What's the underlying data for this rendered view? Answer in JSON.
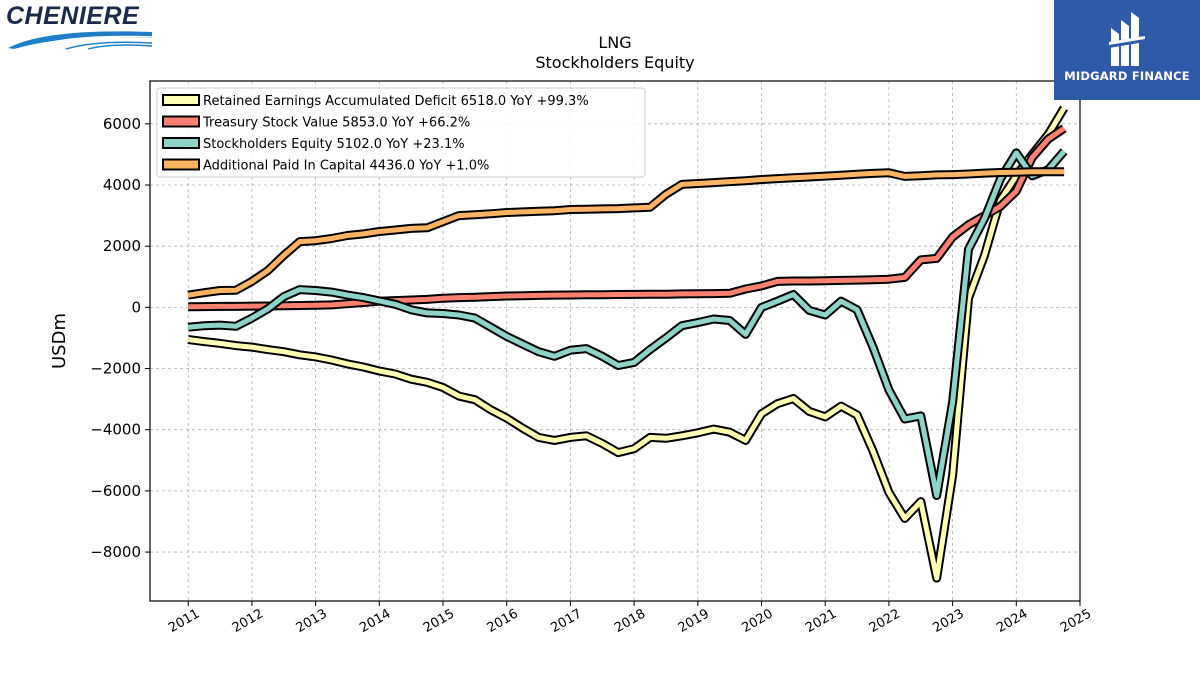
{
  "brands": {
    "left_logo_text": "CHENIERE",
    "right_logo_text": "MIDGARD FINANCE"
  },
  "colors": {
    "retained": "#ffffb3",
    "treasury": "#fb8072",
    "equity": "#8dd3c7",
    "apic": "#fdb462",
    "midgard_bg": "#2f5aa8"
  },
  "chart_data": {
    "type": "line",
    "title": "LNG",
    "subtitle": "Stockholders  Equity",
    "ylabel": "USDm",
    "xlabel": "",
    "xlim": [
      2010.4,
      2025.0
    ],
    "ylim": [
      -9600,
      7400
    ],
    "yticks": [
      -8000,
      -6000,
      -4000,
      -2000,
      0,
      2000,
      4000,
      6000
    ],
    "ytick_labels": [
      "−8000",
      "−6000",
      "−4000",
      "−2000",
      "0",
      "2000",
      "4000",
      "6000"
    ],
    "xticks": [
      2011,
      2012,
      2013,
      2014,
      2015,
      2016,
      2017,
      2018,
      2019,
      2020,
      2021,
      2022,
      2023,
      2024,
      2025
    ],
    "xtick_labels": [
      "2011",
      "2012",
      "2013",
      "2014",
      "2015",
      "2016",
      "2017",
      "2018",
      "2019",
      "2020",
      "2021",
      "2022",
      "2023",
      "2024",
      "2025"
    ],
    "grid": true,
    "legend_position": "top-left",
    "series": [
      {
        "name": "Retained Earnings Accumulated Deficit  6518.0 YoY +99.3%",
        "color": "#ffffb3",
        "points": [
          [
            2011.0,
            -1050
          ],
          [
            2011.25,
            -1120
          ],
          [
            2011.5,
            -1180
          ],
          [
            2011.75,
            -1250
          ],
          [
            2012.0,
            -1300
          ],
          [
            2012.25,
            -1380
          ],
          [
            2012.5,
            -1450
          ],
          [
            2012.75,
            -1550
          ],
          [
            2013.0,
            -1620
          ],
          [
            2013.25,
            -1720
          ],
          [
            2013.5,
            -1850
          ],
          [
            2013.75,
            -1950
          ],
          [
            2014.0,
            -2080
          ],
          [
            2014.25,
            -2180
          ],
          [
            2014.5,
            -2350
          ],
          [
            2014.75,
            -2450
          ],
          [
            2015.0,
            -2620
          ],
          [
            2015.25,
            -2900
          ],
          [
            2015.5,
            -3020
          ],
          [
            2015.75,
            -3350
          ],
          [
            2016.0,
            -3620
          ],
          [
            2016.25,
            -3950
          ],
          [
            2016.5,
            -4250
          ],
          [
            2016.75,
            -4350
          ],
          [
            2017.0,
            -4250
          ],
          [
            2017.25,
            -4200
          ],
          [
            2017.5,
            -4450
          ],
          [
            2017.75,
            -4750
          ],
          [
            2018.0,
            -4620
          ],
          [
            2018.25,
            -4250
          ],
          [
            2018.5,
            -4280
          ],
          [
            2018.75,
            -4200
          ],
          [
            2019.0,
            -4100
          ],
          [
            2019.25,
            -3980
          ],
          [
            2019.5,
            -4080
          ],
          [
            2019.75,
            -4350
          ],
          [
            2020.0,
            -3480
          ],
          [
            2020.25,
            -3150
          ],
          [
            2020.5,
            -2980
          ],
          [
            2020.75,
            -3400
          ],
          [
            2021.0,
            -3580
          ],
          [
            2021.25,
            -3230
          ],
          [
            2021.5,
            -3520
          ],
          [
            2021.75,
            -4700
          ],
          [
            2022.0,
            -6050
          ],
          [
            2022.25,
            -6900
          ],
          [
            2022.5,
            -6350
          ],
          [
            2022.75,
            -8850
          ],
          [
            2023.0,
            -5500
          ],
          [
            2023.25,
            300
          ],
          [
            2023.5,
            1700
          ],
          [
            2023.75,
            3500
          ],
          [
            2024.0,
            4300
          ],
          [
            2024.25,
            5000
          ],
          [
            2024.5,
            5650
          ],
          [
            2024.75,
            6518
          ]
        ]
      },
      {
        "name": "Treasury Stock Value  5853.0 YoY +66.2%",
        "color": "#fb8072",
        "points": [
          [
            2011.0,
            20
          ],
          [
            2011.25,
            25
          ],
          [
            2011.5,
            30
          ],
          [
            2011.75,
            30
          ],
          [
            2012.0,
            40
          ],
          [
            2012.25,
            45
          ],
          [
            2012.5,
            50
          ],
          [
            2012.75,
            60
          ],
          [
            2013.0,
            70
          ],
          [
            2013.25,
            80
          ],
          [
            2013.5,
            120
          ],
          [
            2013.75,
            160
          ],
          [
            2014.0,
            200
          ],
          [
            2014.25,
            220
          ],
          [
            2014.5,
            240
          ],
          [
            2014.75,
            260
          ],
          [
            2015.0,
            300
          ],
          [
            2015.25,
            320
          ],
          [
            2015.5,
            330
          ],
          [
            2015.75,
            350
          ],
          [
            2016.0,
            370
          ],
          [
            2016.25,
            380
          ],
          [
            2016.5,
            390
          ],
          [
            2016.75,
            400
          ],
          [
            2017.0,
            405
          ],
          [
            2017.25,
            410
          ],
          [
            2017.5,
            415
          ],
          [
            2017.75,
            420
          ],
          [
            2018.0,
            425
          ],
          [
            2018.25,
            430
          ],
          [
            2018.5,
            430
          ],
          [
            2018.75,
            440
          ],
          [
            2019.0,
            445
          ],
          [
            2019.25,
            450
          ],
          [
            2019.5,
            460
          ],
          [
            2019.75,
            600
          ],
          [
            2020.0,
            700
          ],
          [
            2020.25,
            850
          ],
          [
            2020.5,
            860
          ],
          [
            2020.75,
            860
          ],
          [
            2021.0,
            870
          ],
          [
            2021.25,
            880
          ],
          [
            2021.5,
            890
          ],
          [
            2021.75,
            900
          ],
          [
            2022.0,
            920
          ],
          [
            2022.25,
            980
          ],
          [
            2022.5,
            1550
          ],
          [
            2022.75,
            1600
          ],
          [
            2023.0,
            2300
          ],
          [
            2023.25,
            2700
          ],
          [
            2023.5,
            3000
          ],
          [
            2023.75,
            3300
          ],
          [
            2024.0,
            3800
          ],
          [
            2024.25,
            4900
          ],
          [
            2024.5,
            5500
          ],
          [
            2024.75,
            5853
          ]
        ]
      },
      {
        "name": "Stockholders Equity  5102.0 YoY +23.1%",
        "color": "#8dd3c7",
        "points": [
          [
            2011.0,
            -650
          ],
          [
            2011.25,
            -600
          ],
          [
            2011.5,
            -580
          ],
          [
            2011.75,
            -620
          ],
          [
            2012.0,
            -350
          ],
          [
            2012.25,
            -50
          ],
          [
            2012.5,
            350
          ],
          [
            2012.75,
            580
          ],
          [
            2013.0,
            550
          ],
          [
            2013.25,
            500
          ],
          [
            2013.5,
            400
          ],
          [
            2013.75,
            320
          ],
          [
            2014.0,
            210
          ],
          [
            2014.25,
            100
          ],
          [
            2014.5,
            -80
          ],
          [
            2014.75,
            -180
          ],
          [
            2015.0,
            -200
          ],
          [
            2015.25,
            -250
          ],
          [
            2015.5,
            -350
          ],
          [
            2015.75,
            -650
          ],
          [
            2016.0,
            -950
          ],
          [
            2016.25,
            -1200
          ],
          [
            2016.5,
            -1450
          ],
          [
            2016.75,
            -1600
          ],
          [
            2017.0,
            -1400
          ],
          [
            2017.25,
            -1350
          ],
          [
            2017.5,
            -1600
          ],
          [
            2017.75,
            -1900
          ],
          [
            2018.0,
            -1800
          ],
          [
            2018.25,
            -1380
          ],
          [
            2018.5,
            -1000
          ],
          [
            2018.75,
            -600
          ],
          [
            2019.0,
            -500
          ],
          [
            2019.25,
            -380
          ],
          [
            2019.5,
            -430
          ],
          [
            2019.75,
            -880
          ],
          [
            2020.0,
            0
          ],
          [
            2020.25,
            200
          ],
          [
            2020.5,
            420
          ],
          [
            2020.75,
            -100
          ],
          [
            2021.0,
            -250
          ],
          [
            2021.25,
            200
          ],
          [
            2021.5,
            -80
          ],
          [
            2021.75,
            -1300
          ],
          [
            2022.0,
            -2700
          ],
          [
            2022.25,
            -3650
          ],
          [
            2022.5,
            -3550
          ],
          [
            2022.75,
            -6150
          ],
          [
            2023.0,
            -3100
          ],
          [
            2023.25,
            1900
          ],
          [
            2023.5,
            2900
          ],
          [
            2023.75,
            4200
          ],
          [
            2024.0,
            5050
          ],
          [
            2024.25,
            4300
          ],
          [
            2024.5,
            4500
          ],
          [
            2024.75,
            5102
          ]
        ]
      },
      {
        "name": "Additional Paid In Capital  4436.0 YoY +1.0%",
        "color": "#fdb462",
        "points": [
          [
            2011.0,
            400
          ],
          [
            2011.25,
            480
          ],
          [
            2011.5,
            550
          ],
          [
            2011.75,
            560
          ],
          [
            2012.0,
            850
          ],
          [
            2012.25,
            1200
          ],
          [
            2012.5,
            1700
          ],
          [
            2012.75,
            2150
          ],
          [
            2013.0,
            2180
          ],
          [
            2013.25,
            2250
          ],
          [
            2013.5,
            2350
          ],
          [
            2013.75,
            2400
          ],
          [
            2014.0,
            2480
          ],
          [
            2014.25,
            2530
          ],
          [
            2014.5,
            2580
          ],
          [
            2014.75,
            2600
          ],
          [
            2015.0,
            2800
          ],
          [
            2015.25,
            3000
          ],
          [
            2015.5,
            3030
          ],
          [
            2015.75,
            3060
          ],
          [
            2016.0,
            3100
          ],
          [
            2016.25,
            3120
          ],
          [
            2016.5,
            3140
          ],
          [
            2016.75,
            3160
          ],
          [
            2017.0,
            3200
          ],
          [
            2017.25,
            3210
          ],
          [
            2017.5,
            3220
          ],
          [
            2017.75,
            3230
          ],
          [
            2018.0,
            3250
          ],
          [
            2018.25,
            3270
          ],
          [
            2018.5,
            3700
          ],
          [
            2018.75,
            4020
          ],
          [
            2019.0,
            4050
          ],
          [
            2019.25,
            4080
          ],
          [
            2019.5,
            4110
          ],
          [
            2019.75,
            4140
          ],
          [
            2020.0,
            4180
          ],
          [
            2020.25,
            4210
          ],
          [
            2020.5,
            4240
          ],
          [
            2020.75,
            4260
          ],
          [
            2021.0,
            4290
          ],
          [
            2021.25,
            4320
          ],
          [
            2021.5,
            4350
          ],
          [
            2021.75,
            4380
          ],
          [
            2022.0,
            4400
          ],
          [
            2022.25,
            4280
          ],
          [
            2022.5,
            4300
          ],
          [
            2022.75,
            4330
          ],
          [
            2023.0,
            4340
          ],
          [
            2023.25,
            4360
          ],
          [
            2023.5,
            4390
          ],
          [
            2023.75,
            4410
          ],
          [
            2024.0,
            4420
          ],
          [
            2024.25,
            4430
          ],
          [
            2024.5,
            4430
          ],
          [
            2024.75,
            4436
          ]
        ]
      }
    ]
  }
}
